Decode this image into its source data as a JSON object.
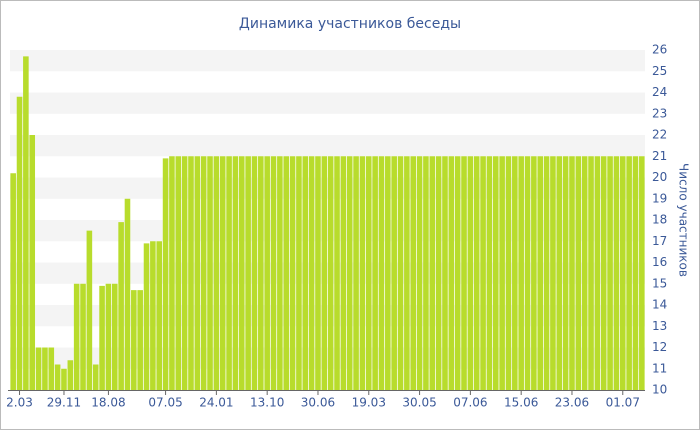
{
  "chart_data": {
    "type": "bar",
    "title": "Динамика участников беседы",
    "y_label": "Число участников",
    "categories": [
      null,
      "2.03",
      null,
      null,
      null,
      null,
      null,
      null,
      "29.11",
      null,
      null,
      null,
      null,
      null,
      null,
      "18.08",
      null,
      null,
      null,
      null,
      null,
      null,
      null,
      null,
      "07.05",
      null,
      null,
      null,
      null,
      null,
      null,
      null,
      "24.01",
      null,
      null,
      null,
      null,
      null,
      null,
      null,
      "13.10",
      null,
      null,
      null,
      null,
      null,
      null,
      null,
      "30.06",
      null,
      null,
      null,
      null,
      null,
      null,
      null,
      "19.03",
      null,
      null,
      null,
      null,
      null,
      null,
      null,
      "30.05",
      null,
      null,
      null,
      null,
      null,
      null,
      null,
      "07.06",
      null,
      null,
      null,
      null,
      null,
      null,
      null,
      "15.06",
      null,
      null,
      null,
      null,
      null,
      null,
      null,
      "23.06",
      null,
      null,
      null,
      null,
      null,
      null,
      null,
      "01.07",
      null,
      null,
      null
    ],
    "values": [
      20.2,
      23.8,
      25.7,
      22,
      12,
      12,
      12,
      11.2,
      11,
      11.4,
      15,
      15,
      17.5,
      11.2,
      14.9,
      15,
      15,
      17.9,
      19,
      14.7,
      14.7,
      16.9,
      17,
      17,
      20.9,
      21,
      21,
      21,
      21,
      21,
      21,
      21,
      21,
      21,
      21,
      21,
      21,
      21,
      21,
      21,
      21,
      21,
      21,
      21,
      21,
      21,
      21,
      21,
      21,
      21,
      21,
      21,
      21,
      21,
      21,
      21,
      21,
      21,
      21,
      21,
      21,
      21,
      21,
      21,
      21,
      21,
      21,
      21,
      21,
      21,
      21,
      21,
      21,
      21,
      21,
      21,
      21,
      21,
      21,
      21,
      21,
      21,
      21,
      21,
      21,
      21,
      21,
      21,
      21,
      21,
      21,
      21,
      21,
      21,
      21,
      21,
      21,
      21,
      21,
      21
    ],
    "color": "#b8dc2c",
    "ylim": [
      10,
      26
    ],
    "yticks": [
      10,
      11,
      12,
      13,
      14,
      15,
      16,
      17,
      18,
      19,
      20,
      21,
      22,
      23,
      24,
      25,
      26
    ],
    "y_axis_side": "right",
    "grid": true
  }
}
